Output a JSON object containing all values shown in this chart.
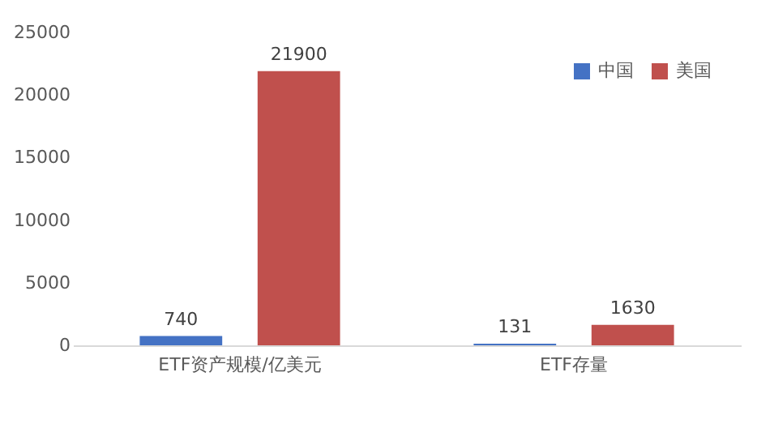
{
  "chart_data": {
    "type": "bar",
    "categories": [
      "ETF资产规模/亿美元",
      "ETF存量"
    ],
    "series": [
      {
        "name": "中国",
        "color": "#4472c4",
        "values": [
          740,
          131
        ]
      },
      {
        "name": "美国",
        "color": "#c0504d",
        "values": [
          21900,
          1630
        ]
      }
    ],
    "ylim": [
      0,
      25000
    ],
    "yticks": [
      0,
      5000,
      10000,
      15000,
      20000,
      25000
    ],
    "data_labels": true,
    "legend": "top right"
  }
}
